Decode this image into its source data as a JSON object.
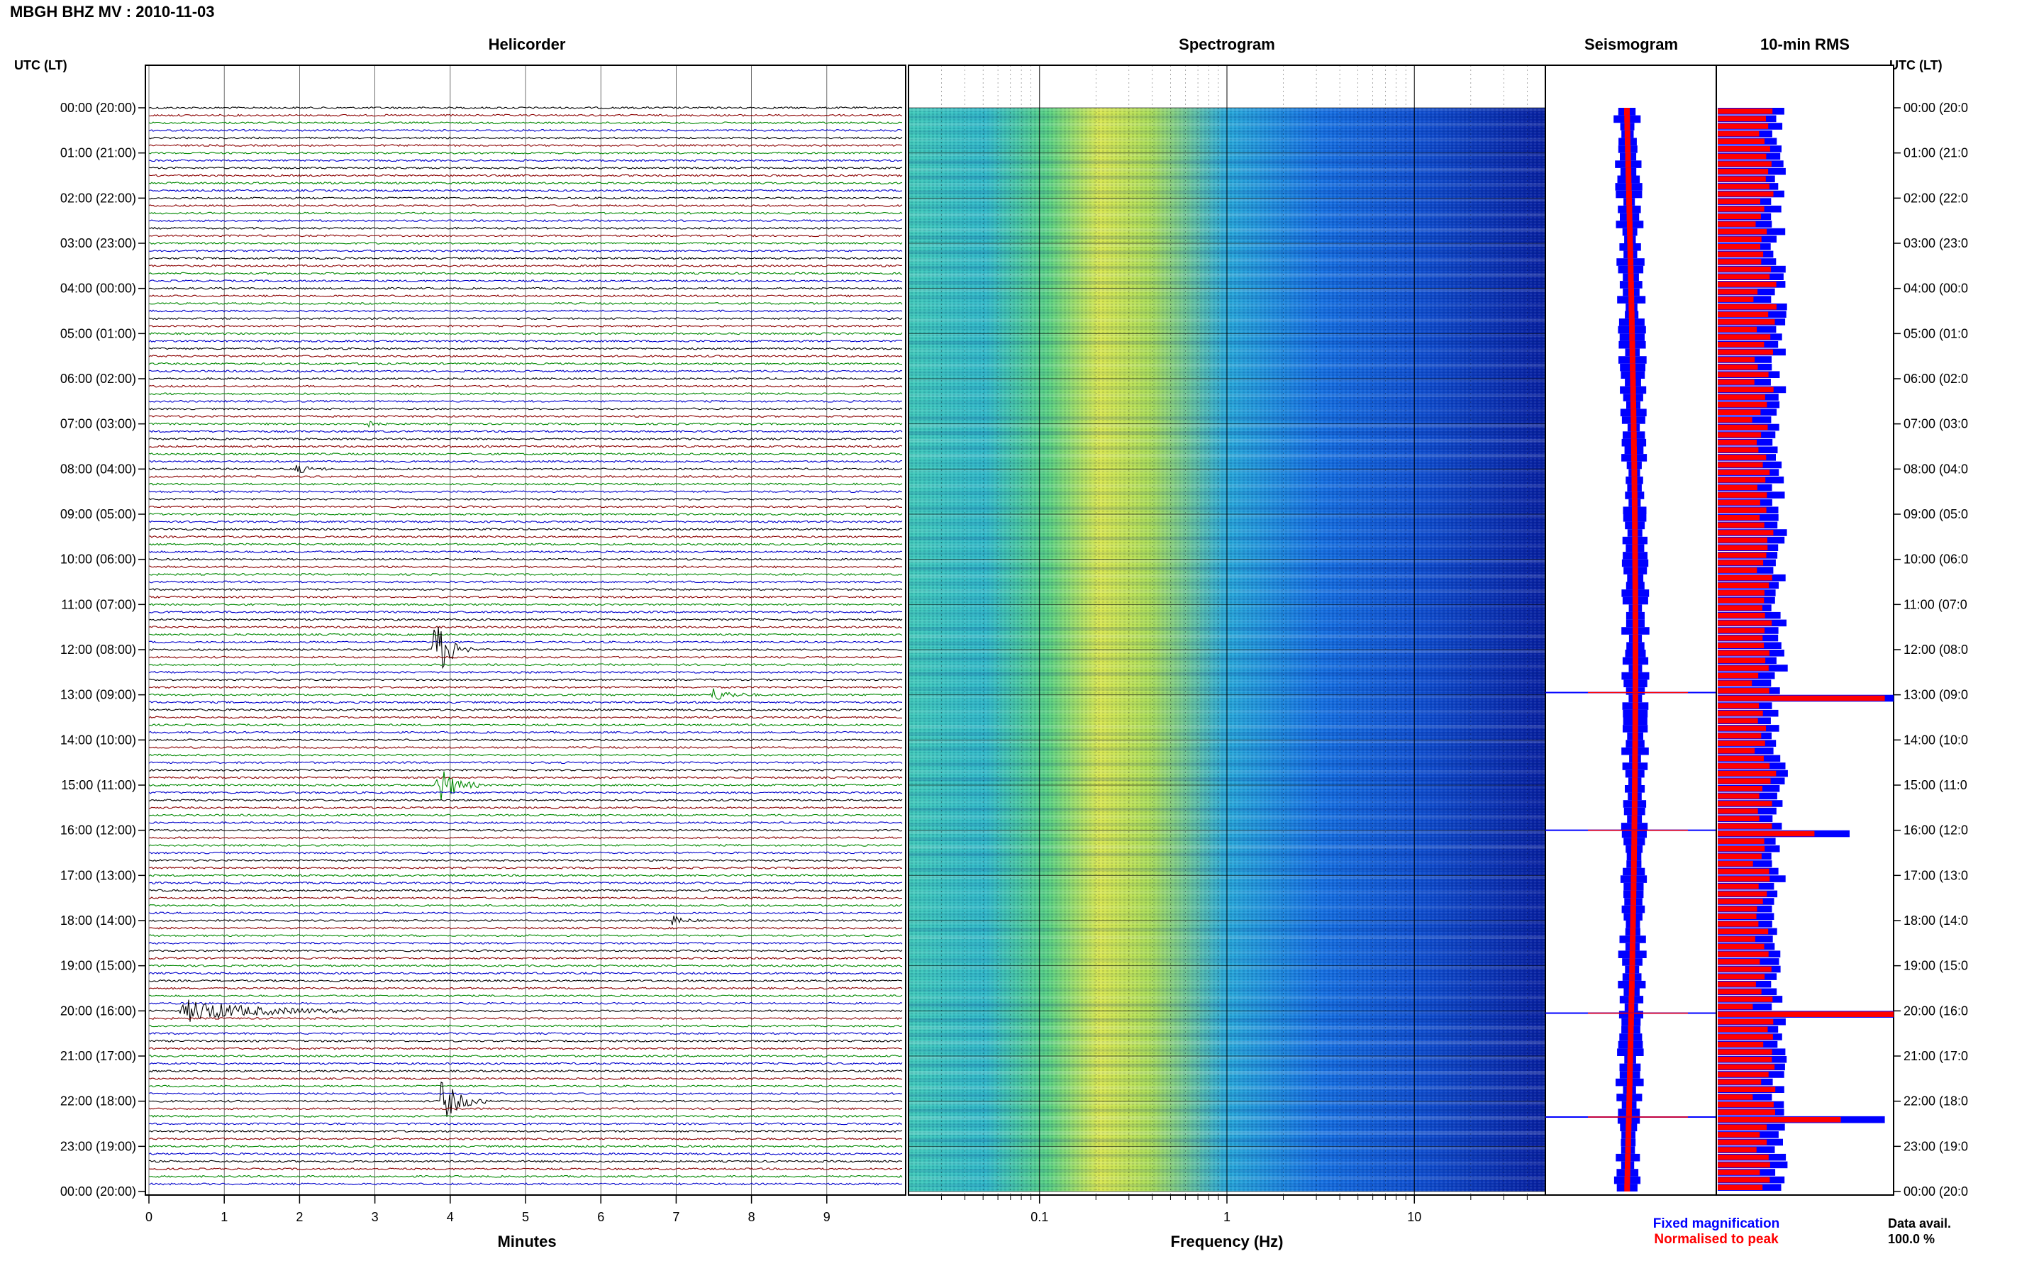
{
  "header": {
    "title": "MBGH BHZ MV : 2010-11-03"
  },
  "panels": {
    "helicorder": "Helicorder",
    "spectrogram": "Spectrogram",
    "seismogram": "Seismogram",
    "rms": "10-min RMS"
  },
  "axes": {
    "time_label": "UTC (LT)",
    "minutes_label": "Minutes",
    "frequency_label": "Frequency (Hz)",
    "minute_ticks": [
      "0",
      "1",
      "2",
      "3",
      "4",
      "5",
      "6",
      "7",
      "8",
      "9"
    ],
    "frequency_ticks": [
      "0.1",
      "1",
      "10"
    ],
    "hour_labels": [
      "00:00 (20:00)",
      "01:00 (21:00)",
      "02:00 (22:00)",
      "03:00 (23:00)",
      "04:00 (00:00)",
      "05:00 (01:00)",
      "06:00 (02:00)",
      "07:00 (03:00)",
      "08:00 (04:00)",
      "09:00 (05:00)",
      "10:00 (06:00)",
      "11:00 (07:00)",
      "12:00 (08:00)",
      "13:00 (09:00)",
      "14:00 (10:00)",
      "15:00 (11:00)",
      "16:00 (12:00)",
      "17:00 (13:00)",
      "18:00 (14:00)",
      "19:00 (15:00)",
      "20:00 (16:00)",
      "21:00 (17:00)",
      "22:00 (18:00)",
      "23:00 (19:00)",
      "00:00 (20:00)"
    ],
    "hour_labels_right": [
      "00:00 (20:0",
      "01:00 (21:0",
      "02:00 (22:0",
      "03:00 (23:0",
      "04:00 (00:0",
      "05:00 (01:0",
      "06:00 (02:0",
      "07:00 (03:0",
      "08:00 (04:0",
      "09:00 (05:0",
      "10:00 (06:0",
      "11:00 (07:0",
      "12:00 (08:0",
      "13:00 (09:0",
      "14:00 (10:0",
      "15:00 (11:0",
      "16:00 (12:0",
      "17:00 (13:0",
      "18:00 (14:0",
      "19:00 (15:0",
      "20:00 (16:0",
      "21:00 (17:0",
      "22:00 (18:0",
      "23:00 (19:0",
      "00:00 (20:0"
    ]
  },
  "legend": {
    "fixed": "Fixed magnification",
    "normalised": "Normalised to peak",
    "fixed_color": "#0000ff",
    "normalised_color": "#ff0000"
  },
  "data_avail": {
    "label": "Data avail.",
    "value": "100.0 %"
  },
  "colors": {
    "trace_cycle": [
      "#000000",
      "#8b0000",
      "#008800",
      "#0000cc"
    ],
    "rms_fixed": "#0000ff",
    "rms_norm": "#ff0000"
  },
  "chart_data": {
    "type": "heatmap",
    "station": "MBGH",
    "channel": "BHZ",
    "network": "MV",
    "date": "2010-11-03",
    "rows_per_hour": 6,
    "rows_minutes": 10,
    "minutes_range": [
      0,
      10
    ],
    "frequency_range_hz": [
      0.02,
      50
    ],
    "frequency_scale": "log",
    "data_availability_percent": 100.0,
    "events": [
      {
        "hour": 7,
        "minute_start": 2.85,
        "minute_end": 3.15,
        "amplitude": 0.6,
        "color_index": 0
      },
      {
        "hour": 8,
        "minute_start": 1.9,
        "minute_end": 2.4,
        "amplitude": 0.7,
        "color_index": 1
      },
      {
        "hour": 12,
        "minute_start": 3.75,
        "minute_end": 4.3,
        "amplitude": 5.0,
        "color_index": 1
      },
      {
        "hour": 13,
        "minute_start": 7.45,
        "minute_end": 8.1,
        "amplitude": 0.9,
        "color_index": 1
      },
      {
        "hour": 15,
        "minute_start": 3.8,
        "minute_end": 4.4,
        "amplitude": 3.0,
        "color_index": 2
      },
      {
        "hour": 18,
        "minute_start": 6.9,
        "minute_end": 7.3,
        "amplitude": 0.8,
        "color_index": 1
      },
      {
        "hour": 20,
        "minute_start": 0.4,
        "minute_end": 2.9,
        "amplitude": 1.5,
        "color_index": 1
      },
      {
        "hour": 22,
        "minute_start": 3.85,
        "minute_end": 4.5,
        "amplitude": 3.0,
        "color_index": 3
      }
    ],
    "rms_spikes": [
      {
        "hour": 12.95,
        "fixed": 1.0,
        "normalised": 0.95
      },
      {
        "hour": 16.0,
        "fixed": 0.75,
        "normalised": 0.55
      },
      {
        "hour": 20.05,
        "fixed": 1.0,
        "normalised": 1.0
      },
      {
        "hour": 22.35,
        "fixed": 0.95,
        "normalised": 0.7
      }
    ]
  }
}
